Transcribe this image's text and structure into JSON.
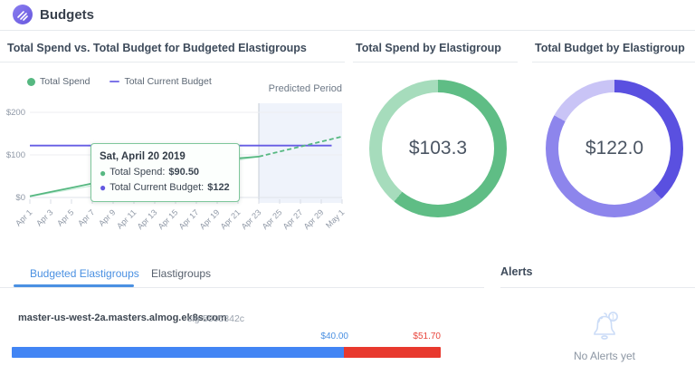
{
  "header": {
    "title": "Budgets"
  },
  "tabs": [
    {
      "label": "Budgeted Elastigroups",
      "active": true
    },
    {
      "label": "Elastigroups",
      "active": false
    }
  ],
  "alerts": {
    "title": "Alerts",
    "empty_text": "No Alerts yet"
  },
  "elastigroup_row": {
    "name": "master-us-west-2a.masters.almog.ek8s.com",
    "sig": "sig-5505342c",
    "spend_label": "$40.00",
    "budget_label": "$51.70",
    "spend_value": 40.0,
    "over_value": 11.7,
    "total_value": 51.7,
    "spend_color": "#4285f4",
    "over_color": "#e8392e",
    "spend_label_color": "#4a90e2",
    "over_label_color": "#e8453c"
  },
  "chart_data": [
    {
      "type": "line",
      "title": "Total Spend vs. Total Budget for Budgeted Elastigroups",
      "annotation": "Predicted Period",
      "legend": [
        {
          "label": "Total Spend",
          "color": "#56b881",
          "marker": "circle"
        },
        {
          "label": "Total Current Budget",
          "color": "#7d74e8",
          "marker": "dash"
        }
      ],
      "ylim": [
        0,
        200
      ],
      "y_ticks": [
        {
          "value": 0,
          "label": "$0"
        },
        {
          "value": 100,
          "label": "$100"
        },
        {
          "value": 200,
          "label": "$200"
        }
      ],
      "x_ticks": [
        "Apr 1",
        "Apr 3",
        "Apr 5",
        "Apr 7",
        "Apr 9",
        "Apr 11",
        "Apr 13",
        "Apr 15",
        "Apr 17",
        "Apr 19",
        "Apr 21",
        "Apr 23",
        "Apr 25",
        "Apr 27",
        "Apr 29",
        "May 1"
      ],
      "x_domain_days": 30,
      "predicted_start_day": 22,
      "series": [
        {
          "name": "Total Current Budget",
          "color": "#665ce4",
          "style": "solid",
          "points": [
            [
              0,
              122
            ],
            [
              29,
              122
            ]
          ]
        },
        {
          "name": "Total Spend",
          "color": "#56b881",
          "style": "solid",
          "points": [
            [
              0,
              3
            ],
            [
              2,
              13
            ],
            [
              4,
              23
            ],
            [
              6,
              33
            ],
            [
              8,
              42
            ],
            [
              10,
              51
            ],
            [
              12,
              60
            ],
            [
              14,
              69
            ],
            [
              16,
              78
            ],
            [
              18,
              86
            ],
            [
              19,
              90.5
            ],
            [
              20,
              92
            ],
            [
              22,
              96
            ]
          ]
        },
        {
          "name": "Total Spend (predicted)",
          "color": "#56b881",
          "style": "dashed",
          "points": [
            [
              22,
              96
            ],
            [
              30,
              143
            ]
          ]
        }
      ],
      "marker": {
        "day": 19,
        "value": 90.5,
        "color": "#4db37e"
      },
      "tooltip": {
        "title": "Sat, April 20 2019",
        "rows": [
          {
            "label": "Total Spend:",
            "value": "$90.50",
            "color": "#56b881"
          },
          {
            "label": "Total Current Budget:",
            "value": "$122",
            "color": "#6258e0"
          }
        ]
      }
    },
    {
      "type": "donut",
      "title": "Total Spend by Elastigroup",
      "center_label": "$103.3",
      "segments": [
        {
          "pct": 61,
          "color": "#5fbd85"
        },
        {
          "pct": 39,
          "color": "#a6dcbc"
        }
      ]
    },
    {
      "type": "donut",
      "title": "Total Budget by Elastigroup",
      "center_label": "$122.0",
      "segments": [
        {
          "pct": 38,
          "color": "#5a50e0"
        },
        {
          "pct": 45,
          "color": "#8d85ec"
        },
        {
          "pct": 17,
          "color": "#c9c4f6"
        }
      ]
    }
  ]
}
